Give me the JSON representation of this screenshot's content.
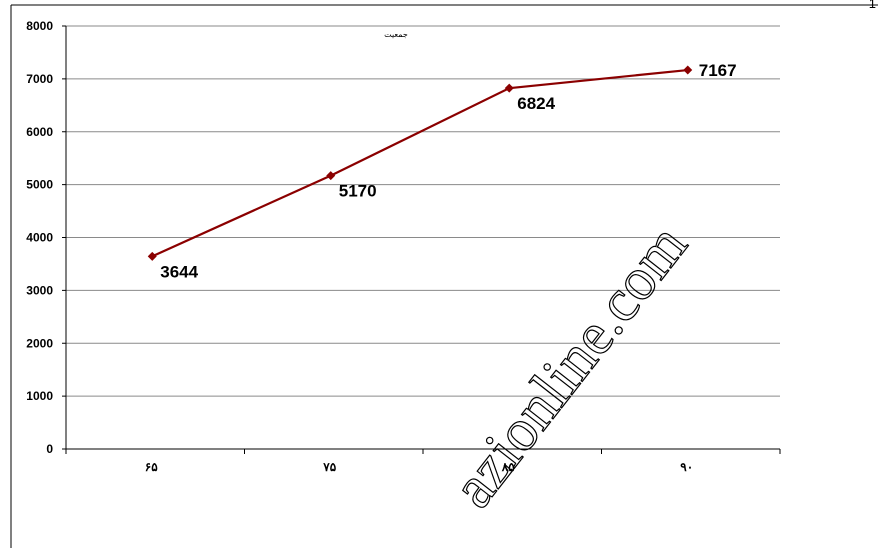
{
  "page": {
    "corner_number": "1"
  },
  "watermark": {
    "text": "azionline.com"
  },
  "chart_data": {
    "type": "line",
    "title": "جمعیت",
    "xlabel": "",
    "ylabel": "",
    "categories": [
      "۶۵",
      "۷۵",
      "۸۵",
      "۹۰"
    ],
    "series": [
      {
        "values": [
          3644,
          5170,
          6824,
          7167
        ],
        "color": "#8b0000"
      }
    ],
    "data_labels": [
      "3644",
      "5170",
      "6824",
      "7167"
    ],
    "y_ticks": [
      "0",
      "1000",
      "2000",
      "3000",
      "4000",
      "5000",
      "6000",
      "7000",
      "8000"
    ],
    "ylim": [
      0,
      8000
    ],
    "grid": true,
    "legend": "none",
    "marker": "diamond"
  }
}
